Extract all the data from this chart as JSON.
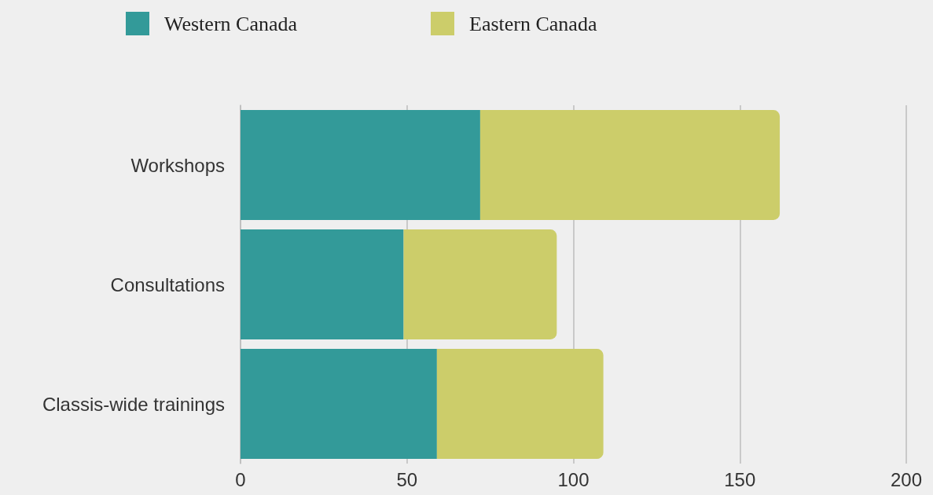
{
  "chart_data": {
    "type": "bar",
    "orientation": "horizontal",
    "stacked": true,
    "categories": [
      "Workshops",
      "Consultations",
      "Classis-wide trainings"
    ],
    "series": [
      {
        "name": "Western Canada",
        "color": "#339a99",
        "values": [
          72,
          49,
          59
        ]
      },
      {
        "name": "Eastern Canada",
        "color": "#cccd6a",
        "values": [
          90,
          46,
          50
        ]
      }
    ],
    "xlim": [
      0,
      200
    ],
    "xticks": [
      0,
      50,
      100,
      150,
      200
    ],
    "grid": "x",
    "legend": "top"
  }
}
